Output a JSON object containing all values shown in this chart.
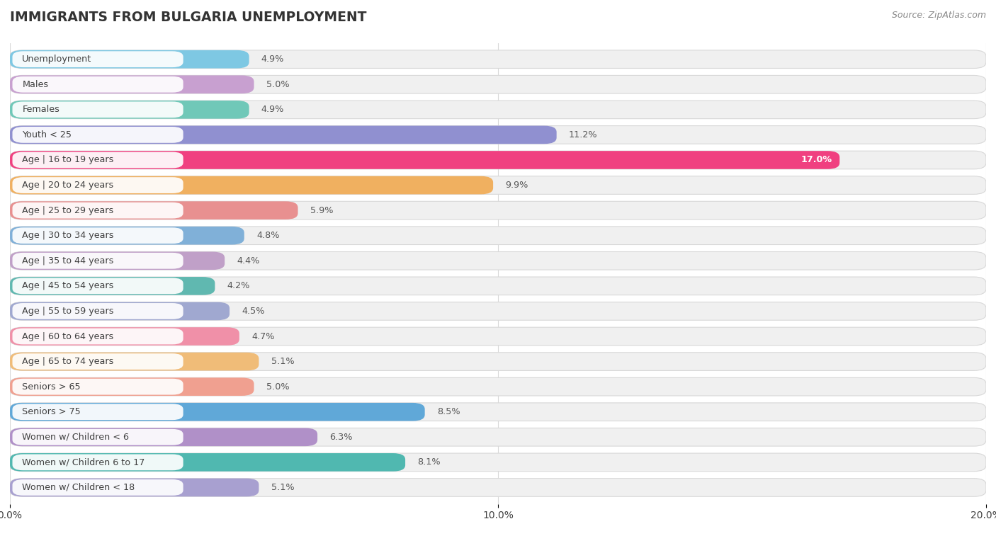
{
  "title": "IMMIGRANTS FROM BULGARIA UNEMPLOYMENT",
  "source": "Source: ZipAtlas.com",
  "categories": [
    "Unemployment",
    "Males",
    "Females",
    "Youth < 25",
    "Age | 16 to 19 years",
    "Age | 20 to 24 years",
    "Age | 25 to 29 years",
    "Age | 30 to 34 years",
    "Age | 35 to 44 years",
    "Age | 45 to 54 years",
    "Age | 55 to 59 years",
    "Age | 60 to 64 years",
    "Age | 65 to 74 years",
    "Seniors > 65",
    "Seniors > 75",
    "Women w/ Children < 6",
    "Women w/ Children 6 to 17",
    "Women w/ Children < 18"
  ],
  "values": [
    4.9,
    5.0,
    4.9,
    11.2,
    17.0,
    9.9,
    5.9,
    4.8,
    4.4,
    4.2,
    4.5,
    4.7,
    5.1,
    5.0,
    8.5,
    6.3,
    8.1,
    5.1
  ],
  "bar_colors": [
    "#7ec8e3",
    "#c8a0d0",
    "#70c8b8",
    "#9090d0",
    "#f04080",
    "#f0b060",
    "#e89090",
    "#80b0d8",
    "#c0a0c8",
    "#60b8b0",
    "#a0a8d0",
    "#f090a8",
    "#f0bc78",
    "#f0a090",
    "#60a8d8",
    "#b090c8",
    "#50b8b0",
    "#a8a0d0"
  ],
  "xlim": [
    0,
    20
  ],
  "xticks": [
    0.0,
    10.0,
    20.0
  ],
  "xtick_labels": [
    "0.0%",
    "10.0%",
    "20.0%"
  ],
  "background_color": "#ffffff",
  "row_bg_color": "#f0f0f0",
  "row_border_color": "#d8d8d8",
  "label_bg_color": "#ffffff",
  "label_color": "#404040",
  "value_color": "#555555",
  "value_bold_color": "#ffffff",
  "title_color": "#333333",
  "source_color": "#888888",
  "grid_color": "#d8d8d8"
}
